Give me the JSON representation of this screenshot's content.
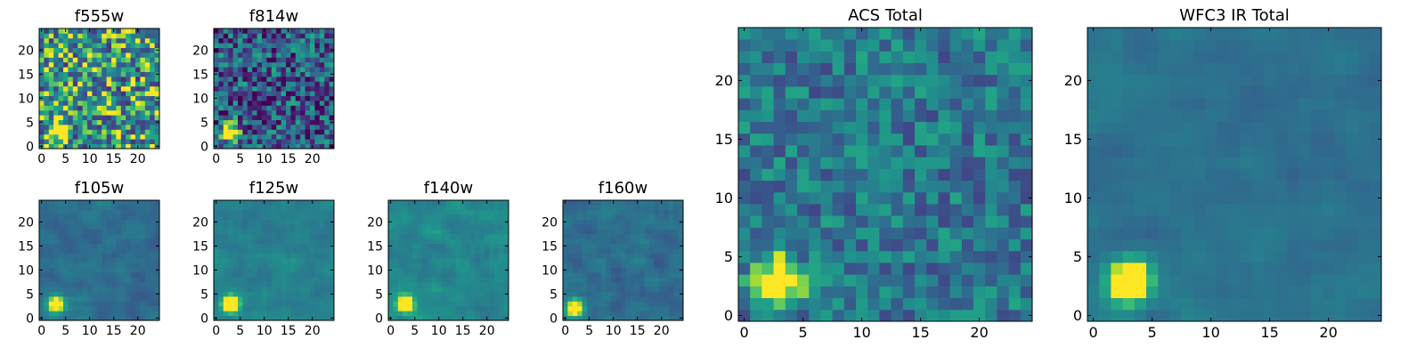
{
  "figure": {
    "colormap": "viridis",
    "panels": [
      {
        "title": "f555w",
        "xticks": [
          0,
          5,
          10,
          15,
          20
        ],
        "yticks": [
          0,
          5,
          10,
          15,
          20
        ]
      },
      {
        "title": "f814w",
        "xticks": [
          0,
          5,
          10,
          15,
          20
        ],
        "yticks": [
          0,
          5,
          10,
          15,
          20
        ]
      },
      {
        "title": "f105w",
        "xticks": [
          0,
          5,
          10,
          15,
          20
        ],
        "yticks": [
          0,
          5,
          10,
          15,
          20
        ]
      },
      {
        "title": "f125w",
        "xticks": [
          0,
          5,
          10,
          15,
          20
        ],
        "yticks": [
          0,
          5,
          10,
          15,
          20
        ]
      },
      {
        "title": "f140w",
        "xticks": [
          0,
          5,
          10,
          15,
          20
        ],
        "yticks": [
          0,
          5,
          10,
          15,
          20
        ]
      },
      {
        "title": "f160w",
        "xticks": [
          0,
          5,
          10,
          15,
          20
        ],
        "yticks": [
          0,
          5,
          10,
          15,
          20
        ]
      },
      {
        "title": "ACS Total",
        "xticks": [
          0,
          5,
          10,
          15,
          20
        ],
        "yticks": [
          0,
          5,
          10,
          15,
          20
        ]
      },
      {
        "title": "WFC3 IR Total",
        "xticks": [
          0,
          5,
          10,
          15,
          20
        ],
        "yticks": [
          0,
          5,
          10,
          15,
          20
        ]
      }
    ]
  },
  "chart_data": [
    {
      "type": "heatmap",
      "title": "f555w",
      "xlabel": "",
      "ylabel": "",
      "xlim": [
        -0.5,
        24.5
      ],
      "ylim": [
        -0.5,
        24.5
      ],
      "grid_size": 25,
      "bright_source": {
        "x": 3,
        "y": 3
      },
      "background": "noisy bright"
    },
    {
      "type": "heatmap",
      "title": "f814w",
      "xlabel": "",
      "ylabel": "",
      "xlim": [
        -0.5,
        24.5
      ],
      "ylim": [
        -0.5,
        24.5
      ],
      "grid_size": 25,
      "bright_source": {
        "x": 3,
        "y": 3
      },
      "background": "noisy dark"
    },
    {
      "type": "heatmap",
      "title": "f105w",
      "xlabel": "",
      "ylabel": "",
      "xlim": [
        -0.5,
        24.5
      ],
      "ylim": [
        -0.5,
        24.5
      ],
      "grid_size": 25,
      "bright_source": {
        "x": 3,
        "y": 3
      },
      "background": "smooth"
    },
    {
      "type": "heatmap",
      "title": "f125w",
      "xlabel": "",
      "ylabel": "",
      "xlim": [
        -0.5,
        24.5
      ],
      "ylim": [
        -0.5,
        24.5
      ],
      "grid_size": 25,
      "bright_source": {
        "x": 3,
        "y": 3
      },
      "background": "smooth"
    },
    {
      "type": "heatmap",
      "title": "f140w",
      "xlabel": "",
      "ylabel": "",
      "xlim": [
        -0.5,
        24.5
      ],
      "ylim": [
        -0.5,
        24.5
      ],
      "grid_size": 25,
      "bright_source": {
        "x": 3,
        "y": 3
      },
      "background": "smooth"
    },
    {
      "type": "heatmap",
      "title": "f160w",
      "xlabel": "",
      "ylabel": "",
      "xlim": [
        -0.5,
        24.5
      ],
      "ylim": [
        -0.5,
        24.5
      ],
      "grid_size": 25,
      "bright_source": {
        "x": 2,
        "y": 2
      },
      "background": "smooth"
    },
    {
      "type": "heatmap",
      "title": "ACS Total",
      "xlabel": "",
      "ylabel": "",
      "xlim": [
        -0.5,
        24.5
      ],
      "ylim": [
        -0.5,
        24.5
      ],
      "grid_size": 25,
      "bright_source": {
        "x": 3,
        "y": 3
      },
      "background": "noisy"
    },
    {
      "type": "heatmap",
      "title": "WFC3 IR Total",
      "xlabel": "",
      "ylabel": "",
      "xlim": [
        -0.5,
        24.5
      ],
      "ylim": [
        -0.5,
        24.5
      ],
      "grid_size": 25,
      "bright_source": {
        "x": 3,
        "y": 3
      },
      "background": "smooth"
    }
  ]
}
